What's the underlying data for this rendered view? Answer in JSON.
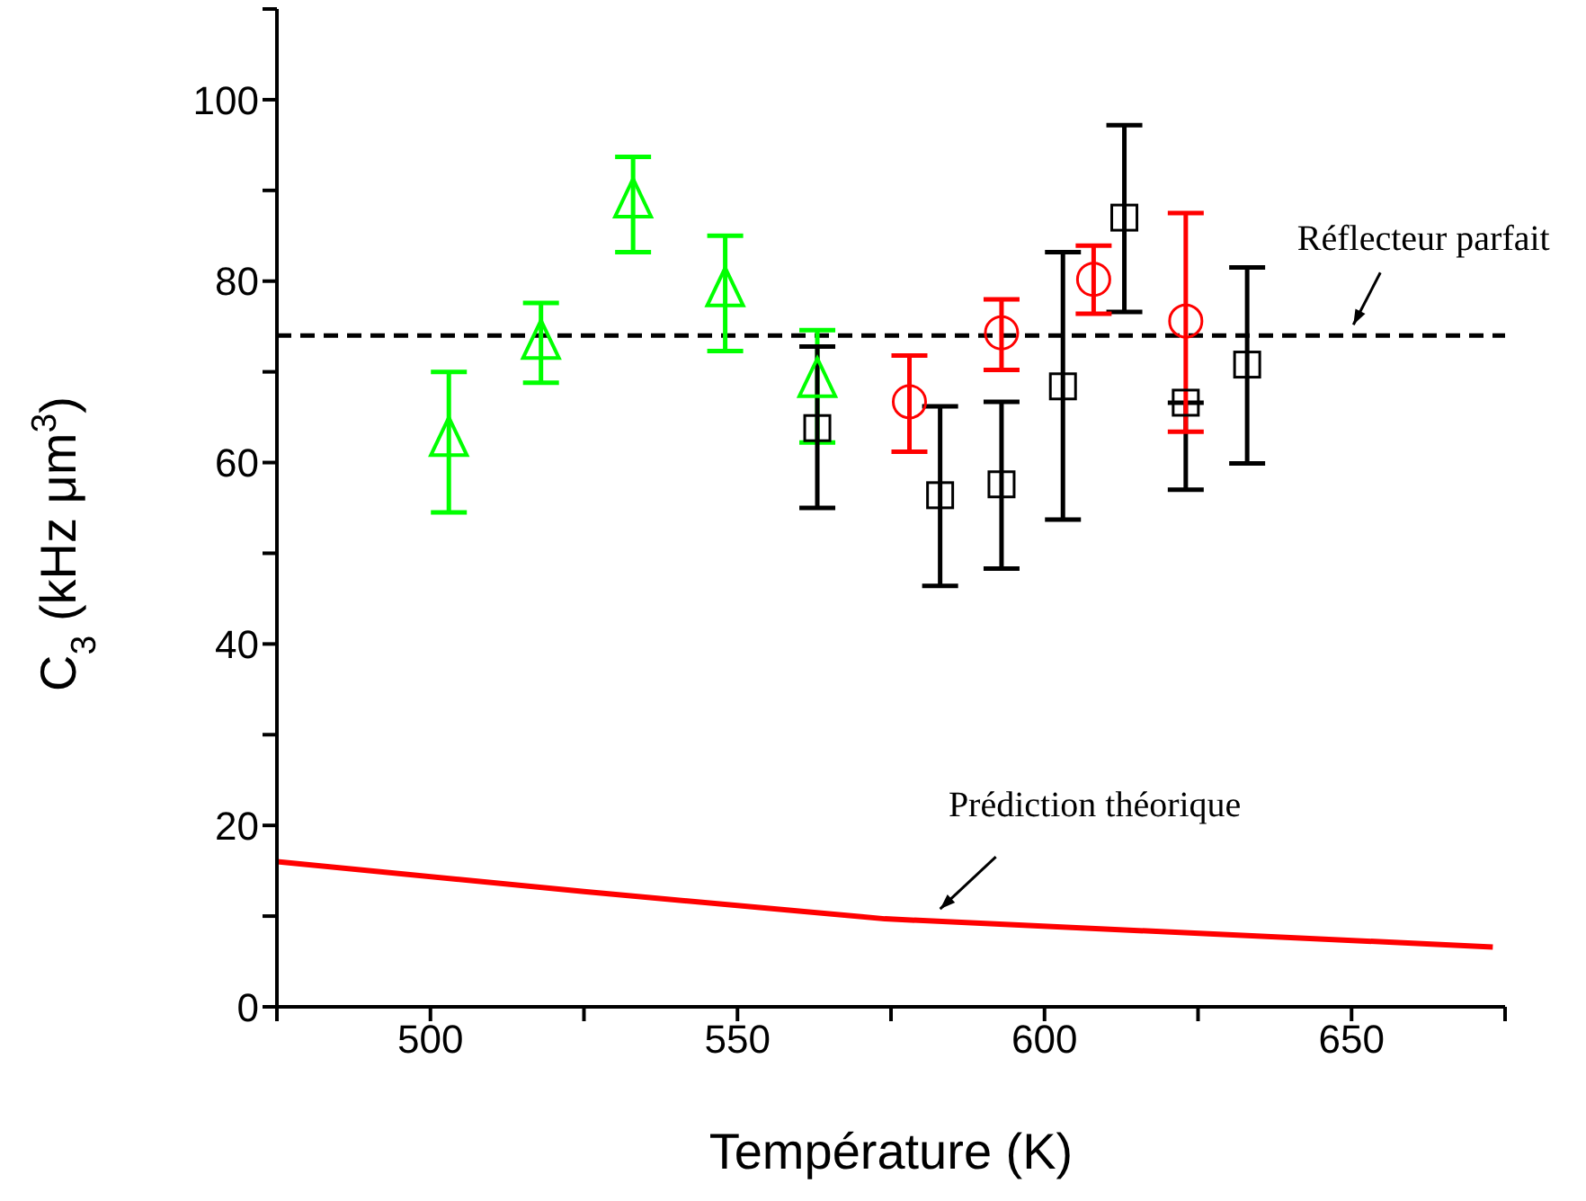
{
  "chart_data": {
    "type": "scatter",
    "xlabel": "Température (K)",
    "ylabel": "C$_{3}$ (kHz μm$^{3}$)",
    "xlim": [
      475,
      675
    ],
    "xticks": [
      {
        "value": 475,
        "label": null
      },
      500,
      {
        "value": 525,
        "label": null
      },
      550,
      {
        "value": 575,
        "label": null
      },
      600,
      {
        "value": 625,
        "label": null
      },
      650,
      {
        "value": 675,
        "label": null
      }
    ],
    "ylim": [
      0,
      110
    ],
    "yticks": [
      0,
      {
        "value": 10,
        "label": null
      },
      20,
      {
        "value": 30,
        "label": null
      },
      40,
      {
        "value": 50,
        "label": null
      },
      60,
      {
        "value": 70,
        "label": null
      },
      80,
      {
        "value": 90,
        "label": null
      },
      100,
      {
        "value": 110,
        "label": null
      }
    ],
    "grid": false,
    "legend": false,
    "series": [
      {
        "marker": "triangle",
        "color": "#00ff00",
        "x": [
          503,
          518,
          533,
          548,
          563
        ],
        "values": [
          62.2,
          72.9,
          88.5,
          78.7,
          68.7
        ],
        "errors": [
          [
            54.5,
            70.0
          ],
          [
            68.8,
            77.6
          ],
          [
            83.2,
            93.7
          ],
          [
            72.3,
            85.0
          ],
          [
            62.2,
            74.6
          ]
        ]
      },
      {
        "marker": "square",
        "color": "#000000",
        "x": [
          563,
          583,
          593,
          603,
          613,
          623,
          633
        ],
        "values": [
          63.8,
          56.4,
          57.6,
          68.4,
          87.0,
          66.6,
          70.8
        ],
        "errors": [
          [
            55.0,
            72.8
          ],
          [
            46.4,
            66.2
          ],
          [
            48.3,
            66.7
          ],
          [
            53.7,
            83.2
          ],
          [
            76.6,
            97.2
          ],
          [
            57.0,
            66.6
          ],
          [
            59.9,
            81.5
          ]
        ]
      },
      {
        "marker": "circle",
        "color": "#ff0000",
        "x": [
          578,
          593,
          608,
          623
        ],
        "values": [
          66.7,
          74.3,
          80.2,
          75.6
        ],
        "errors": [
          [
            61.2,
            71.8
          ],
          [
            70.2,
            78.0
          ],
          [
            76.4,
            83.9
          ],
          [
            63.4,
            87.5
          ]
        ]
      },
      {
        "type": "line",
        "marker": "none",
        "color": "#ff0000",
        "x": [
          475,
          525,
          574,
          673
        ],
        "values": [
          16.0,
          12.7,
          9.7,
          6.6
        ]
      }
    ],
    "ref_lines": [
      {
        "axis": "y",
        "value": 74,
        "color": "#000000",
        "line_style": "dashed"
      }
    ],
    "annotations": [
      {
        "text": "Réflecteur parfait",
        "x": 650,
        "y": 74
      },
      {
        "text": "Prédiction théorique",
        "x": 583,
        "y": 9.6
      }
    ]
  }
}
